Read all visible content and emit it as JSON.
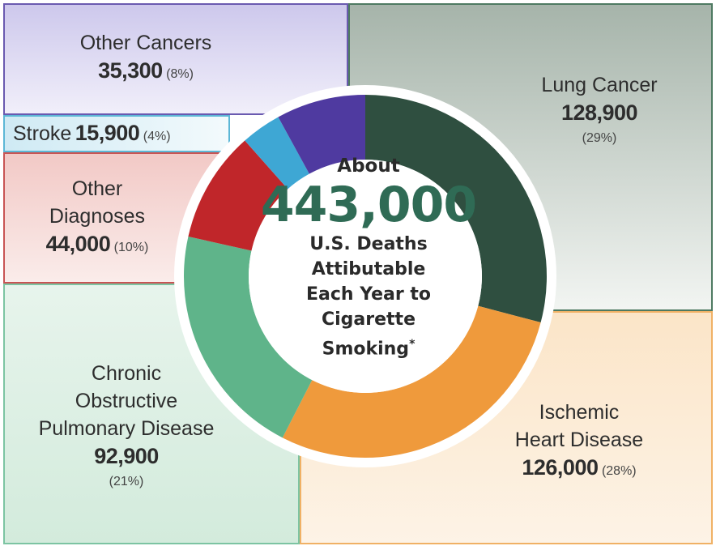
{
  "chart_data": {
    "type": "pie",
    "center": {
      "about": "About",
      "total": "443,000",
      "description": "U.S. Deaths\nAttibutable\nEach Year to\nCigarette\nSmoking",
      "footnote_mark": "*"
    },
    "slices": [
      {
        "id": "lung",
        "label": "Lung Cancer",
        "value": 128900,
        "value_text": "128,900",
        "pct_text": "(29%)",
        "color": "#2f4f40"
      },
      {
        "id": "ischemic",
        "label": "Ischemic Heart Disease",
        "label_lines": [
          "Ischemic",
          "Heart Disease"
        ],
        "value": 126000,
        "value_text": "126,000",
        "pct_text": "(28%)",
        "color": "#ef9a3c"
      },
      {
        "id": "copd",
        "label": "Chronic Obstructive Pulmonary Disease",
        "label_lines": [
          "Chronic",
          "Obstructive",
          "Pulmonary Disease"
        ],
        "value": 92900,
        "value_text": "92,900",
        "pct_text": "(21%)",
        "color": "#5fb48a"
      },
      {
        "id": "other_diag",
        "label": "Other Diagnoses",
        "label_lines": [
          "Other",
          "Diagnoses"
        ],
        "value": 44000,
        "value_text": "44,000",
        "pct_text": "(10%)",
        "color": "#c0262a"
      },
      {
        "id": "stroke",
        "label": "Stroke",
        "value": 15900,
        "value_text": "15,900",
        "pct_text": "(4%)",
        "color": "#3ea7d4"
      },
      {
        "id": "other_cancers",
        "label": "Other Cancers",
        "value": 35300,
        "value_text": "35,300",
        "pct_text": "(8%)",
        "color": "#4f3aa0"
      }
    ]
  }
}
